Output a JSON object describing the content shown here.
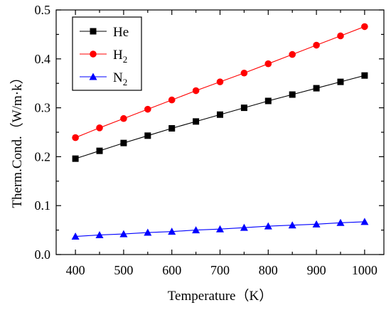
{
  "chart_data": {
    "type": "line",
    "xlabel": "Temperature（K）",
    "ylabel": "Therm.Cond.（W/m·k）",
    "xlim": [
      360,
      1040
    ],
    "ylim": [
      0.0,
      0.5
    ],
    "x_ticks": [
      400,
      500,
      600,
      700,
      800,
      900,
      1000
    ],
    "y_ticks": [
      0.0,
      0.1,
      0.2,
      0.3,
      0.4,
      0.5
    ],
    "y_tick_labels": [
      "0.0",
      "0.1",
      "0.2",
      "0.3",
      "0.4",
      "0.5"
    ],
    "grid": false,
    "legend_position": "top-left",
    "x": [
      400,
      450,
      500,
      550,
      600,
      650,
      700,
      750,
      800,
      850,
      900,
      950,
      1000
    ],
    "series": [
      {
        "name": "He",
        "name_base": "He",
        "name_sub": "",
        "color": "#000000",
        "marker": "square",
        "values": [
          0.196,
          0.212,
          0.228,
          0.243,
          0.258,
          0.272,
          0.286,
          0.3,
          0.314,
          0.327,
          0.34,
          0.353,
          0.366
        ]
      },
      {
        "name": "H2",
        "name_base": "H",
        "name_sub": "2",
        "color": "#ff0000",
        "marker": "circle",
        "values": [
          0.239,
          0.259,
          0.278,
          0.297,
          0.316,
          0.335,
          0.353,
          0.371,
          0.39,
          0.409,
          0.428,
          0.447,
          0.466
        ]
      },
      {
        "name": "N2",
        "name_base": "N",
        "name_sub": "2",
        "color": "#0000ff",
        "marker": "triangle",
        "values": [
          0.037,
          0.04,
          0.042,
          0.045,
          0.047,
          0.05,
          0.052,
          0.055,
          0.058,
          0.06,
          0.062,
          0.065,
          0.067
        ]
      }
    ]
  }
}
